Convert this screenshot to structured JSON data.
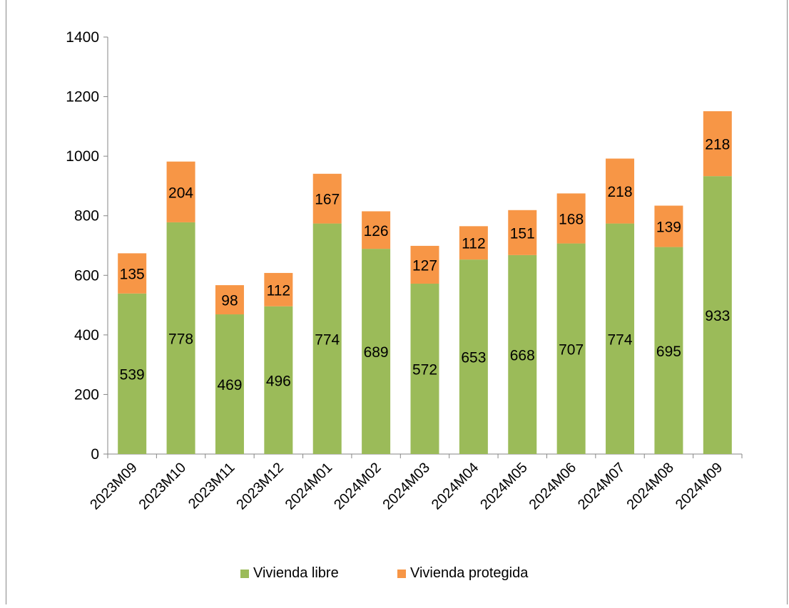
{
  "chart_data": {
    "type": "bar",
    "stacked": true,
    "categories": [
      "2023M09",
      "2023M10",
      "2023M11",
      "2023M12",
      "2024M01",
      "2024M02",
      "2024M03",
      "2024M04",
      "2024M05",
      "2024M06",
      "2024M07",
      "2024M08",
      "2024M09"
    ],
    "series": [
      {
        "name": "Vivienda libre",
        "color": "#9BBB59",
        "values": [
          539,
          778,
          469,
          496,
          774,
          689,
          572,
          653,
          668,
          707,
          774,
          695,
          933
        ]
      },
      {
        "name": "Vivienda protegida",
        "color": "#F79646",
        "values": [
          135,
          204,
          98,
          112,
          167,
          126,
          127,
          112,
          151,
          168,
          218,
          139,
          218
        ]
      }
    ],
    "ylim": [
      0,
      1400
    ],
    "yticks": [
      0,
      200,
      400,
      600,
      800,
      1000,
      1200,
      1400
    ],
    "grid": false,
    "legend_position": "bottom",
    "data_labels": true
  }
}
